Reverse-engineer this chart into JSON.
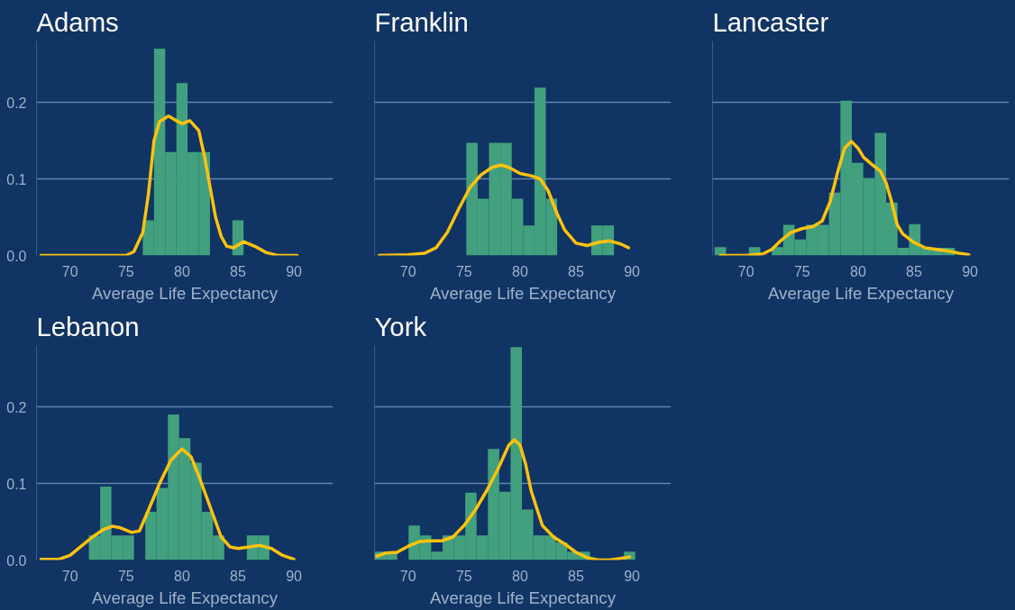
{
  "chart_data": [
    {
      "type": "histogram",
      "title": "Adams",
      "xlabel": "Average Life Expectancy",
      "xlim": [
        67,
        93.5
      ],
      "ylim": [
        0,
        0.28
      ],
      "xticks": [
        70,
        75,
        80,
        85,
        90
      ],
      "yticks": [
        {
          "value": 0,
          "label": "0.0"
        },
        {
          "value": 0.1,
          "label": "0.1"
        },
        {
          "value": 0.2,
          "label": "0.2"
        }
      ],
      "grid": "y",
      "series": [
        {
          "type": "histogram",
          "color": "#42a07e",
          "bins": [
            76.5,
            77.5,
            78.5,
            79.5,
            80.5,
            81.5,
            82.5,
            83.5,
            84.5,
            85.5
          ],
          "values": [
            0.046,
            0.27,
            0.135,
            0.225,
            0.135,
            0.135,
            0,
            0,
            0.046
          ]
        },
        {
          "type": "line",
          "color": "#ffc20e",
          "x": [
            67.4,
            75,
            75.7,
            76.5,
            77,
            77.5,
            78,
            78.8,
            79.5,
            80,
            80.7,
            81.5,
            82,
            82.5,
            83,
            83.5,
            84,
            84.6,
            85.5,
            86.5,
            87.5,
            88.5,
            90.3
          ],
          "values": [
            0,
            0,
            0.005,
            0.03,
            0.08,
            0.15,
            0.175,
            0.182,
            0.176,
            0.172,
            0.176,
            0.163,
            0.13,
            0.09,
            0.05,
            0.025,
            0.012,
            0.01,
            0.018,
            0.012,
            0.004,
            0,
            0
          ]
        }
      ]
    },
    {
      "type": "histogram",
      "title": "Franklin",
      "xlabel": "Average Life Expectancy",
      "xlim": [
        67,
        93.5
      ],
      "ylim": [
        0,
        0.28
      ],
      "xticks": [
        70,
        75,
        80,
        85,
        90
      ],
      "yticks": [
        {
          "value": 0,
          "label": null
        },
        {
          "value": 0.1,
          "label": null
        },
        {
          "value": 0.2,
          "label": null
        }
      ],
      "grid": "y",
      "tick_labels": "x",
      "series": [
        {
          "type": "histogram",
          "color": "#42a07e",
          "bins": [
            75.2,
            76.215,
            77.23,
            78.245,
            79.26,
            80.275,
            81.29,
            82.305,
            83.32,
            84.335,
            85.35,
            86.365,
            87.38,
            88.395
          ],
          "values": [
            0.147,
            0.074,
            0.147,
            0.147,
            0.074,
            0.039,
            0.219,
            0.074,
            0,
            0,
            0,
            0.039,
            0.039
          ]
        },
        {
          "type": "line",
          "color": "#ffc20e",
          "x": [
            67.4,
            70,
            71.5,
            72.5,
            73.5,
            74.5,
            75.5,
            76.5,
            77.5,
            78.3,
            79,
            80,
            81,
            81.8,
            82.5,
            83.3,
            84,
            85,
            86,
            87,
            88,
            89,
            89.7
          ],
          "values": [
            0,
            0.001,
            0.003,
            0.01,
            0.03,
            0.06,
            0.088,
            0.105,
            0.115,
            0.118,
            0.115,
            0.107,
            0.104,
            0.1,
            0.085,
            0.055,
            0.033,
            0.016,
            0.013,
            0.017,
            0.019,
            0.015,
            0.01
          ]
        }
      ]
    },
    {
      "type": "histogram",
      "title": "Lancaster",
      "xlabel": "Average Life Expectancy",
      "xlim": [
        67,
        93.5
      ],
      "ylim": [
        0,
        0.28
      ],
      "xticks": [
        70,
        75,
        80,
        85,
        90
      ],
      "yticks": [
        {
          "value": 0,
          "label": null
        },
        {
          "value": 0.1,
          "label": null
        },
        {
          "value": 0.2,
          "label": null
        }
      ],
      "grid": "y",
      "tick_labels": "x",
      "series": [
        {
          "type": "histogram",
          "color": "#42a07e",
          "bins": [
            67.18,
            68.202,
            69.224,
            70.246,
            71.268,
            72.29,
            73.312,
            74.334,
            75.356,
            76.378,
            77.4,
            78.422,
            79.444,
            80.466,
            81.488,
            82.51,
            83.532,
            84.554,
            85.576,
            86.598,
            87.62,
            88.642
          ],
          "values": [
            0.011,
            0,
            0,
            0.011,
            0,
            0.011,
            0.04,
            0.021,
            0.04,
            0.04,
            0.082,
            0.202,
            0.121,
            0.101,
            0.16,
            0.069,
            0.01,
            0.041,
            0.01,
            0.01,
            0.01
          ]
        },
        {
          "type": "line",
          "color": "#ffc20e",
          "x": [
            67.7,
            70,
            71.5,
            72.3,
            73,
            74,
            75,
            76,
            76.8,
            77.5,
            78.2,
            78.8,
            79.4,
            80,
            80.5,
            81.3,
            82,
            82.5,
            83,
            83.5,
            84,
            85,
            86,
            87,
            88,
            89,
            89.9
          ],
          "values": [
            0,
            0,
            0.002,
            0.008,
            0.018,
            0.03,
            0.035,
            0.038,
            0.045,
            0.07,
            0.11,
            0.14,
            0.149,
            0.14,
            0.128,
            0.118,
            0.11,
            0.095,
            0.07,
            0.04,
            0.028,
            0.017,
            0.01,
            0.008,
            0.006,
            0.003,
            0.001
          ]
        }
      ]
    },
    {
      "type": "histogram",
      "title": "Lebanon",
      "xlabel": "Average Life Expectancy",
      "xlim": [
        67,
        93.5
      ],
      "ylim": [
        0,
        0.28
      ],
      "xticks": [
        70,
        75,
        80,
        85,
        90
      ],
      "yticks": [
        {
          "value": 0,
          "label": "0.0"
        },
        {
          "value": 0.1,
          "label": "0.1"
        },
        {
          "value": 0.2,
          "label": "0.2"
        }
      ],
      "grid": "y",
      "series": [
        {
          "type": "histogram",
          "color": "#42a07e",
          "bins": [
            71.68,
            72.688,
            73.696,
            74.704,
            75.712,
            76.72,
            77.728,
            78.736,
            79.744,
            80.752,
            81.76,
            82.768,
            83.776,
            84.784,
            85.792,
            86.8,
            87.808
          ],
          "values": [
            0.032,
            0.096,
            0.032,
            0.032,
            0,
            0.063,
            0.094,
            0.19,
            0.159,
            0.127,
            0.063,
            0.032,
            0,
            0,
            0.032,
            0.032
          ]
        },
        {
          "type": "line",
          "color": "#ffc20e",
          "x": [
            67.4,
            69,
            70,
            71,
            72,
            73,
            73.8,
            74.5,
            75.5,
            76.2,
            77,
            78,
            79,
            80,
            80.8,
            81.5,
            82.5,
            83.5,
            84.3,
            85,
            86,
            87,
            88,
            89,
            90
          ],
          "values": [
            0.001,
            0.001,
            0.006,
            0.018,
            0.03,
            0.04,
            0.044,
            0.042,
            0.036,
            0.038,
            0.065,
            0.1,
            0.13,
            0.145,
            0.135,
            0.11,
            0.07,
            0.03,
            0.017,
            0.015,
            0.017,
            0.019,
            0.015,
            0.006,
            0.001
          ]
        }
      ]
    },
    {
      "type": "histogram",
      "title": "York",
      "xlabel": "Average Life Expectancy",
      "xlim": [
        67,
        93.5
      ],
      "ylim": [
        0,
        0.28
      ],
      "xticks": [
        70,
        75,
        80,
        85,
        90
      ],
      "yticks": [
        {
          "value": 0,
          "label": null
        },
        {
          "value": 0.1,
          "label": null
        },
        {
          "value": 0.2,
          "label": null
        }
      ],
      "grid": "y",
      "tick_labels": "x",
      "series": [
        {
          "type": "histogram",
          "color": "#42a07e",
          "bins": [
            67.0,
            68.013,
            69.026,
            70.039,
            71.052,
            72.065,
            73.078,
            74.091,
            75.104,
            76.117,
            77.13,
            78.143,
            79.156,
            80.169,
            81.182,
            82.195,
            83.208,
            84.221,
            85.234,
            86.247,
            87.26,
            88.273,
            89.286,
            90.299
          ],
          "values": [
            0.011,
            0.011,
            0,
            0.045,
            0.032,
            0.011,
            0.032,
            0.032,
            0.088,
            0.032,
            0.145,
            0.089,
            0.278,
            0.066,
            0.032,
            0.032,
            0.023,
            0.011,
            0.011,
            0,
            0,
            0,
            0.011
          ]
        },
        {
          "type": "line",
          "color": "#ffc20e",
          "x": [
            67.2,
            68,
            69,
            70,
            71,
            72,
            73,
            74,
            75,
            76,
            77,
            78,
            79,
            79.5,
            80,
            80.5,
            81,
            82,
            83,
            84,
            85,
            86,
            87,
            88,
            89,
            89.8
          ],
          "values": [
            0.005,
            0.009,
            0.01,
            0.018,
            0.024,
            0.025,
            0.025,
            0.03,
            0.045,
            0.065,
            0.09,
            0.118,
            0.15,
            0.157,
            0.15,
            0.125,
            0.09,
            0.045,
            0.03,
            0.021,
            0.01,
            0.003,
            0,
            0,
            0.002,
            0.004
          ]
        }
      ]
    }
  ]
}
